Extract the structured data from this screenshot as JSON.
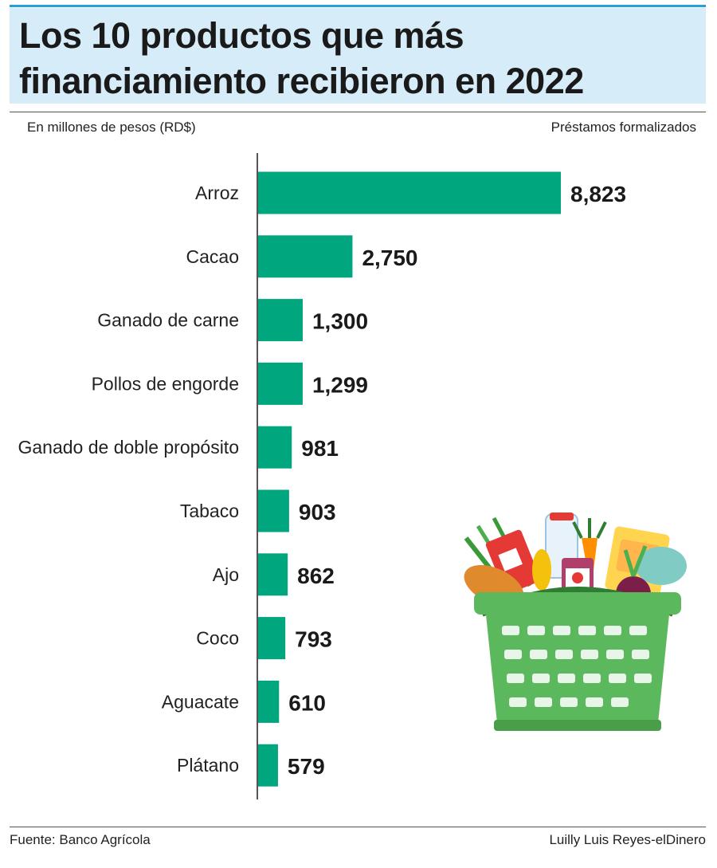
{
  "header": {
    "title": "Los 10 productos que más financiamiento recibieron en 2022",
    "subtitle_left": "En millones de pesos (RD$)",
    "subtitle_right": "Préstamos formalizados"
  },
  "footer": {
    "source": "Fuente: Banco Agrícola",
    "credit": "Luilly Luis Reyes-elDinero"
  },
  "colors": {
    "bar": "#00a67e",
    "title_bg": "#d6ecf8",
    "accent_line": "#2a9fd6",
    "basket": "#5cb85c"
  },
  "illustration": {
    "icon": "grocery-basket-icon"
  },
  "chart_data": {
    "type": "bar",
    "orientation": "horizontal",
    "categories": [
      "Arroz",
      "Cacao",
      "Ganado de carne",
      "Pollos de engorde",
      "Ganado de doble propósito",
      "Tabaco",
      "Ajo",
      "Coco",
      "Aguacate",
      "Plátano"
    ],
    "values": [
      8823,
      2750,
      1300,
      1299,
      981,
      903,
      862,
      793,
      610,
      579
    ],
    "value_labels": [
      "8,823",
      "2,750",
      "1,300",
      "1,299",
      "981",
      "903",
      "862",
      "793",
      "610",
      "579"
    ],
    "xlim": [
      0,
      8823
    ],
    "grid": false,
    "legend": "none"
  }
}
